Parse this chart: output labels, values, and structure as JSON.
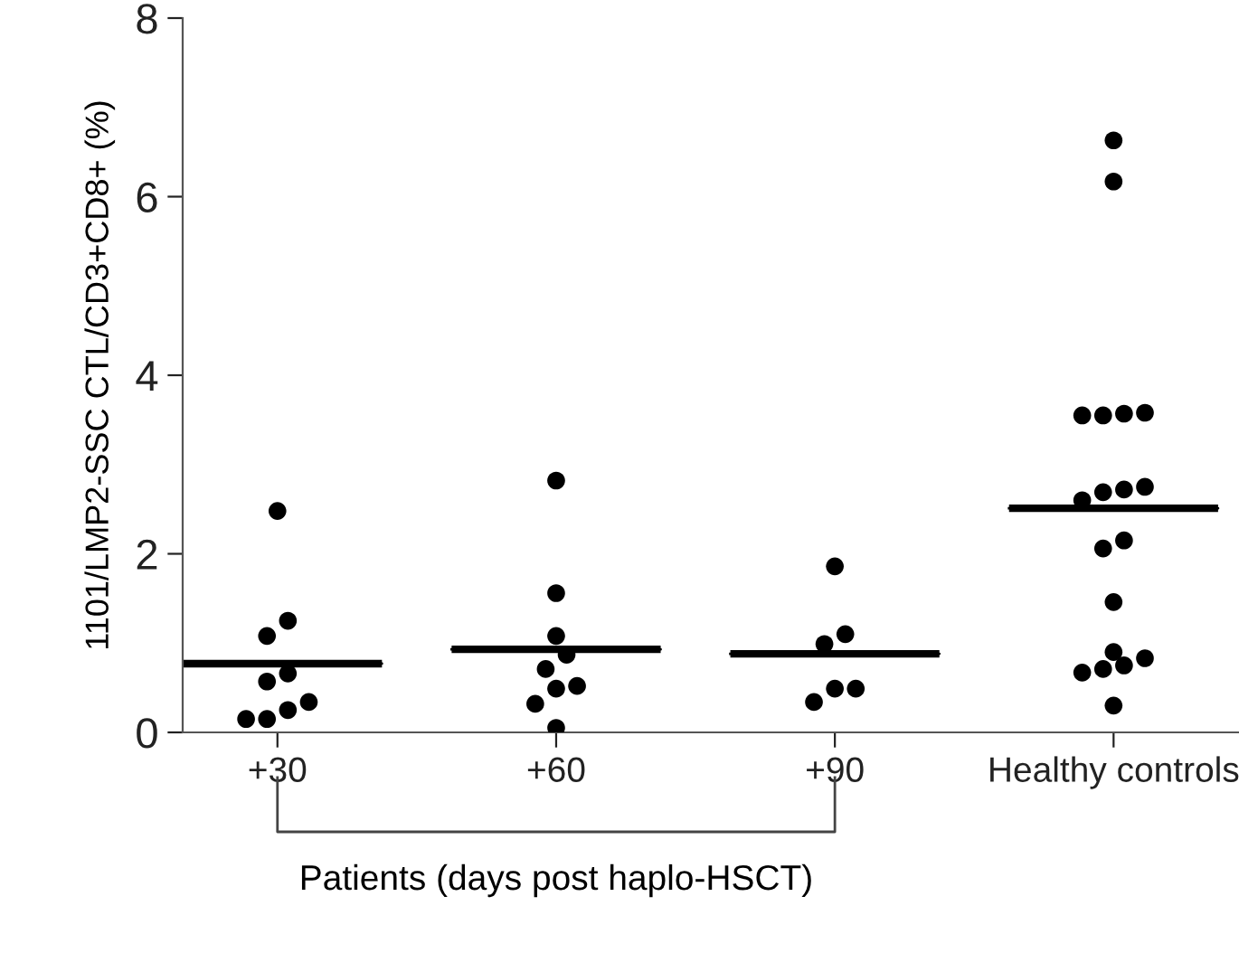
{
  "chart_data": {
    "type": "scatter",
    "xlabel": "Patients (days post haplo-HSCT)",
    "ylabel": "1101/LMP2-SSC CTL/CD3+CD8+ (%)",
    "categories": [
      "+30",
      "+60",
      "+90",
      "Healthy controls"
    ],
    "ylim": [
      0,
      8
    ],
    "yticks": [
      0,
      2,
      4,
      6,
      8
    ],
    "grid": false,
    "series": [
      {
        "type": "scatter",
        "marker": "circle",
        "color": "#000000",
        "x": [
          "+30",
          "+30",
          "+30",
          "+30",
          "+30",
          "+30",
          "+30",
          "+30",
          "+30"
        ],
        "values": [
          2.48,
          1.25,
          1.08,
          0.66,
          0.57,
          0.34,
          0.25,
          0.15,
          0.15
        ]
      },
      {
        "type": "scatter",
        "marker": "circle",
        "color": "#000000",
        "x": [
          "+60",
          "+60",
          "+60",
          "+60",
          "+60",
          "+60",
          "+60",
          "+60",
          "+60"
        ],
        "values": [
          2.82,
          1.56,
          1.08,
          0.87,
          0.71,
          0.52,
          0.49,
          0.32,
          0.05
        ]
      },
      {
        "type": "scatter",
        "marker": "circle",
        "color": "#000000",
        "x": [
          "+90",
          "+90",
          "+90",
          "+90",
          "+90",
          "+90"
        ],
        "values": [
          1.86,
          1.1,
          0.99,
          0.49,
          0.49,
          0.34
        ]
      },
      {
        "type": "scatter",
        "marker": "circle",
        "color": "#000000",
        "x": [
          "Healthy controls",
          "Healthy controls",
          "Healthy controls",
          "Healthy controls",
          "Healthy controls",
          "Healthy controls",
          "Healthy controls",
          "Healthy controls",
          "Healthy controls",
          "Healthy controls",
          "Healthy controls",
          "Healthy controls",
          "Healthy controls",
          "Healthy controls",
          "Healthy controls",
          "Healthy controls",
          "Healthy controls",
          "Healthy controls",
          "Healthy controls"
        ],
        "values": [
          6.63,
          6.17,
          3.58,
          3.55,
          3.55,
          3.57,
          2.75,
          2.72,
          2.69,
          2.6,
          2.15,
          2.06,
          1.46,
          0.9,
          0.83,
          0.75,
          0.71,
          0.67,
          0.3
        ]
      },
      {
        "type": "box",
        "color": "#000000",
        "boxes": [
          {
            "low": 0.77,
            "q1": 0.77,
            "median": 0.77,
            "q3": 0.77,
            "high": 0.77
          },
          {
            "low": 0.93,
            "q1": 0.93,
            "median": 0.93,
            "q3": 0.93,
            "high": 0.93
          },
          {
            "low": 0.88,
            "q1": 0.88,
            "median": 0.88,
            "q3": 0.88,
            "high": 0.88
          },
          {
            "low": 2.51,
            "q1": 2.51,
            "median": 2.51,
            "q3": 2.51,
            "high": 2.51
          }
        ]
      }
    ]
  }
}
